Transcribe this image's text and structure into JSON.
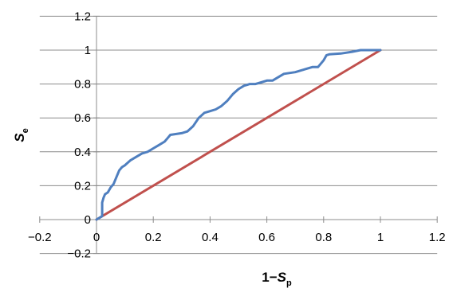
{
  "chart_data": {
    "type": "line",
    "title": "",
    "xlabel": {
      "main": "1−",
      "var": "S",
      "sub": "p"
    },
    "ylabel": {
      "var": "S",
      "sub": "e"
    },
    "xlim": [
      -0.2,
      1.2
    ],
    "ylim": [
      -0.2,
      1.2
    ],
    "x_ticks": [
      "−0.2",
      "0",
      "0.2",
      "0.4",
      "0.6",
      "0.8",
      "1",
      "1.2"
    ],
    "y_ticks": [
      "−0.2",
      "0",
      "0.2",
      "0.4",
      "0.6",
      "0.8",
      "1",
      "1.2"
    ],
    "grid": "horizontal",
    "legend": "none",
    "series": [
      {
        "color": "#4f7fbf",
        "x": [
          0.0,
          0.02,
          0.02,
          0.025,
          0.03,
          0.04,
          0.05,
          0.06,
          0.07,
          0.08,
          0.09,
          0.1,
          0.12,
          0.14,
          0.16,
          0.18,
          0.2,
          0.22,
          0.24,
          0.25,
          0.26,
          0.3,
          0.32,
          0.34,
          0.36,
          0.38,
          0.4,
          0.42,
          0.44,
          0.46,
          0.48,
          0.5,
          0.52,
          0.53,
          0.54,
          0.56,
          0.58,
          0.6,
          0.62,
          0.64,
          0.66,
          0.7,
          0.72,
          0.74,
          0.76,
          0.78,
          0.8,
          0.81,
          0.82,
          0.86,
          0.9,
          0.93,
          1.0
        ],
        "y": [
          0.0,
          0.02,
          0.1,
          0.13,
          0.15,
          0.16,
          0.19,
          0.21,
          0.25,
          0.29,
          0.31,
          0.32,
          0.35,
          0.37,
          0.39,
          0.4,
          0.42,
          0.44,
          0.46,
          0.48,
          0.5,
          0.51,
          0.52,
          0.55,
          0.6,
          0.63,
          0.64,
          0.65,
          0.67,
          0.7,
          0.74,
          0.77,
          0.79,
          0.795,
          0.8,
          0.8,
          0.81,
          0.82,
          0.82,
          0.84,
          0.86,
          0.87,
          0.88,
          0.89,
          0.9,
          0.9,
          0.94,
          0.97,
          0.975,
          0.98,
          0.99,
          1.0,
          1.0
        ]
      },
      {
        "color": "#c0504d",
        "x": [
          0.0,
          1.0
        ],
        "y": [
          0.0,
          1.0
        ]
      }
    ]
  }
}
